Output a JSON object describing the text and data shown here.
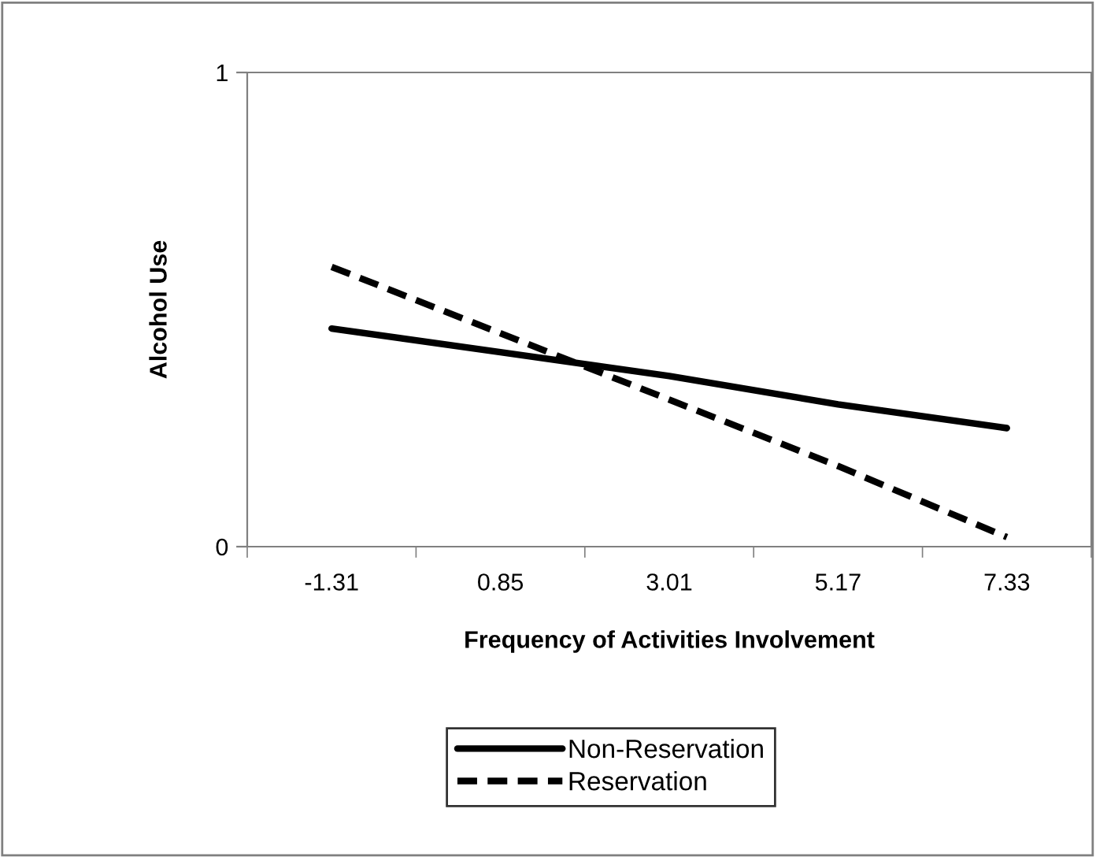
{
  "chart_data": {
    "type": "line",
    "xlabel": "Frequency of Activities Involvement",
    "ylabel": "Alcohol Use",
    "categories": [
      "-1.31",
      "0.85",
      "3.01",
      "5.17",
      "7.33"
    ],
    "ylim": [
      0,
      1
    ],
    "yticks": [
      0,
      1
    ],
    "grid": false,
    "legend": "bottom",
    "marker": "none",
    "series": [
      {
        "name": "Non-Reservation",
        "color": "#000000",
        "line_style": "solid",
        "values": [
          0.46,
          0.41,
          0.36,
          0.3,
          0.25
        ]
      },
      {
        "name": "Reservation",
        "color": "#000000",
        "line_style": "dashed",
        "values": [
          0.59,
          0.45,
          0.31,
          0.17,
          0.02
        ]
      }
    ]
  }
}
